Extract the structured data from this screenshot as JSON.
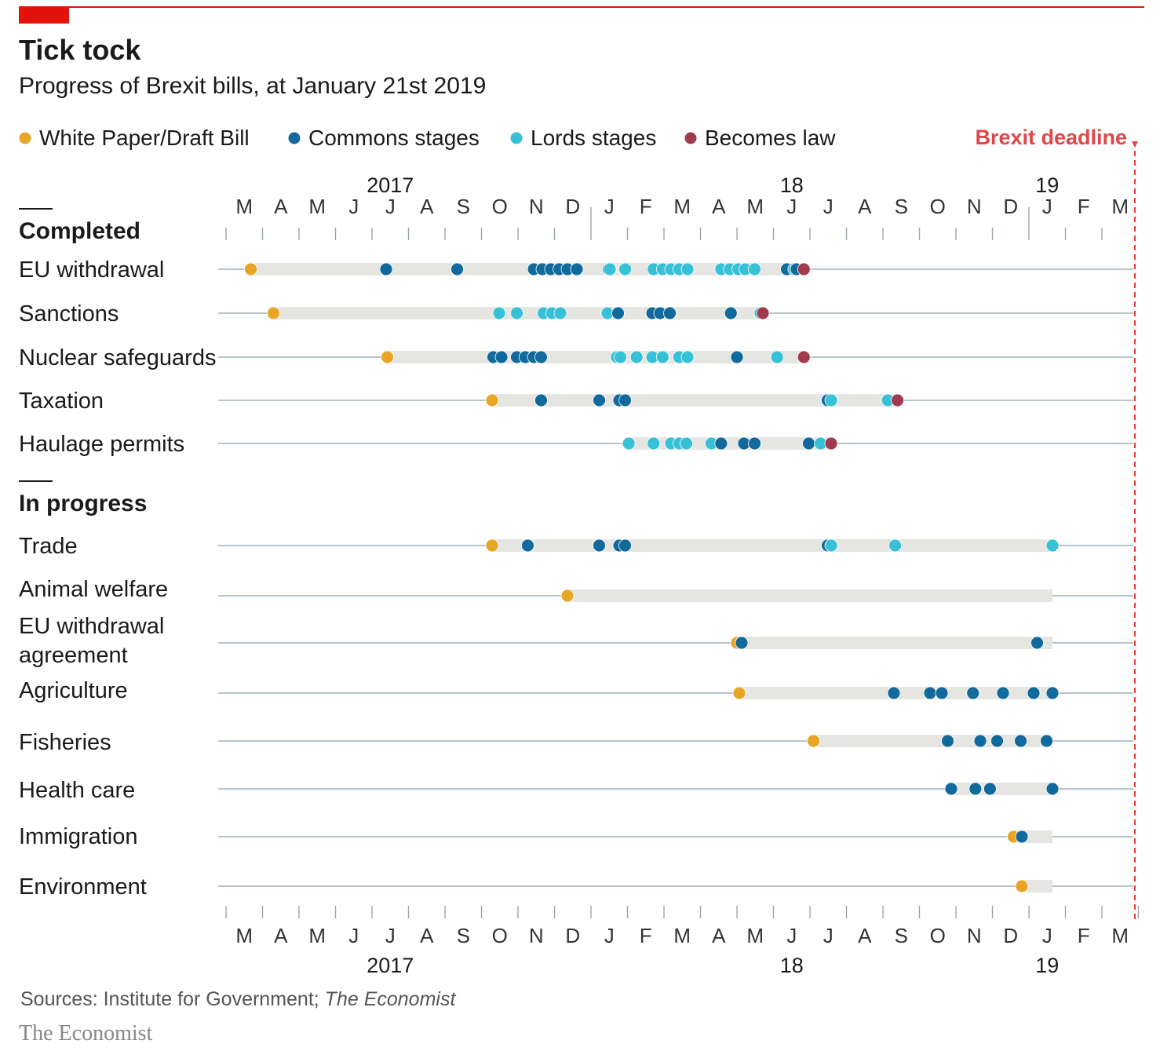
{
  "title": "Tick tock",
  "subtitle": "Progress of Brexit bills, at January 21st 2019",
  "source": {
    "prefix": "Sources: Institute for Government; ",
    "publication": "The Economist"
  },
  "brand": "The Economist",
  "colors": {
    "draft": "#e8a628",
    "commons": "#12699c",
    "lords": "#37c0d6",
    "law": "#a03a4c",
    "deadline": "#e3120b",
    "band": "#e5e5e1",
    "track": "#b7c4cc"
  },
  "chart_data": {
    "type": "scatter",
    "x_unit": "month",
    "x_range": [
      "2017-03",
      "2019-03"
    ],
    "month_letters": [
      "M",
      "A",
      "M",
      "J",
      "J",
      "A",
      "S",
      "O",
      "N",
      "D",
      "J",
      "F",
      "M",
      "A",
      "M",
      "J",
      "J",
      "A",
      "S",
      "O",
      "N",
      "D",
      "J",
      "F",
      "M"
    ],
    "year_labels": [
      {
        "label": "2017",
        "month": "2017-07"
      },
      {
        "label": "18",
        "month": "2018-06"
      },
      {
        "label": "19",
        "month": "2019-01"
      }
    ],
    "legend": [
      {
        "key": "draft",
        "label": "White Paper/Draft Bill"
      },
      {
        "key": "commons",
        "label": "Commons stages"
      },
      {
        "key": "lords",
        "label": "Lords stages"
      },
      {
        "key": "law",
        "label": "Becomes law"
      }
    ],
    "deadline": {
      "label": "Brexit deadline",
      "date": "2019-03-29"
    },
    "groups": [
      {
        "heading": "Completed",
        "bills": [
          {
            "name": "EU withdrawal",
            "band": [
              "2017-03-22",
              "2018-06-26"
            ],
            "points": [
              [
                "draft",
                "2017-03-22"
              ],
              [
                "commons",
                "2017-07-13"
              ],
              [
                "commons",
                "2017-09-11"
              ],
              [
                "commons",
                "2017-11-14"
              ],
              [
                "commons",
                "2017-11-21"
              ],
              [
                "commons",
                "2017-11-28"
              ],
              [
                "commons",
                "2017-12-05"
              ],
              [
                "commons",
                "2017-12-12"
              ],
              [
                "commons",
                "2017-12-20"
              ],
              [
                "commons",
                "2018-01-16"
              ],
              [
                "lords",
                "2018-01-17"
              ],
              [
                "lords",
                "2018-01-30"
              ],
              [
                "lords",
                "2018-02-21"
              ],
              [
                "lords",
                "2018-02-28"
              ],
              [
                "lords",
                "2018-03-07"
              ],
              [
                "lords",
                "2018-03-14"
              ],
              [
                "lords",
                "2018-03-21"
              ],
              [
                "lords",
                "2018-04-18"
              ],
              [
                "lords",
                "2018-04-25"
              ],
              [
                "lords",
                "2018-05-02"
              ],
              [
                "lords",
                "2018-05-08"
              ],
              [
                "lords",
                "2018-05-16"
              ],
              [
                "commons",
                "2018-06-12"
              ],
              [
                "lords",
                "2018-06-18"
              ],
              [
                "commons",
                "2018-06-20"
              ],
              [
                "law",
                "2018-06-26"
              ]
            ]
          },
          {
            "name": "Sanctions",
            "band": [
              "2017-04-10",
              "2018-05-23"
            ],
            "points": [
              [
                "draft",
                "2017-04-10"
              ],
              [
                "lords",
                "2017-10-16"
              ],
              [
                "lords",
                "2017-10-31"
              ],
              [
                "lords",
                "2017-11-22"
              ],
              [
                "lords",
                "2017-11-29"
              ],
              [
                "lords",
                "2017-12-06"
              ],
              [
                "lords",
                "2018-01-15"
              ],
              [
                "commons",
                "2018-01-24"
              ],
              [
                "commons",
                "2018-02-20"
              ],
              [
                "commons",
                "2018-02-26"
              ],
              [
                "commons",
                "2018-03-06"
              ],
              [
                "commons",
                "2018-04-26"
              ],
              [
                "lords",
                "2018-05-21"
              ],
              [
                "law",
                "2018-05-23"
              ]
            ]
          },
          {
            "name": "Nuclear safeguards",
            "band": [
              "2017-07-14",
              "2018-06-26"
            ],
            "points": [
              [
                "draft",
                "2017-07-14"
              ],
              [
                "commons",
                "2017-10-11"
              ],
              [
                "commons",
                "2017-10-18"
              ],
              [
                "commons",
                "2017-10-31"
              ],
              [
                "commons",
                "2017-11-07"
              ],
              [
                "commons",
                "2017-11-14"
              ],
              [
                "commons",
                "2017-11-20"
              ],
              [
                "lords",
                "2018-01-23"
              ],
              [
                "lords",
                "2018-01-26"
              ],
              [
                "lords",
                "2018-02-08"
              ],
              [
                "lords",
                "2018-02-20"
              ],
              [
                "lords",
                "2018-02-28"
              ],
              [
                "lords",
                "2018-03-14"
              ],
              [
                "lords",
                "2018-03-21"
              ],
              [
                "commons",
                "2018-05-01"
              ],
              [
                "lords",
                "2018-06-04"
              ],
              [
                "law",
                "2018-06-26"
              ]
            ]
          },
          {
            "name": "Taxation",
            "band": [
              "2017-10-10",
              "2018-09-13"
            ],
            "points": [
              [
                "draft",
                "2017-10-10"
              ],
              [
                "commons",
                "2017-11-20"
              ],
              [
                "commons",
                "2018-01-08"
              ],
              [
                "commons",
                "2018-01-25"
              ],
              [
                "commons",
                "2018-01-30"
              ],
              [
                "commons",
                "2018-07-16"
              ],
              [
                "lords",
                "2018-07-19"
              ],
              [
                "lords",
                "2018-09-05"
              ],
              [
                "law",
                "2018-09-13"
              ]
            ]
          },
          {
            "name": "Haulage permits",
            "band": [
              "2018-02-02",
              "2018-07-19"
            ],
            "points": [
              [
                "lords",
                "2018-02-02"
              ],
              [
                "lords",
                "2018-02-21"
              ],
              [
                "lords",
                "2018-03-07"
              ],
              [
                "lords",
                "2018-03-14"
              ],
              [
                "lords",
                "2018-03-20"
              ],
              [
                "lords",
                "2018-04-10"
              ],
              [
                "commons",
                "2018-04-18"
              ],
              [
                "commons",
                "2018-05-07"
              ],
              [
                "commons",
                "2018-05-16"
              ],
              [
                "commons",
                "2018-06-30"
              ],
              [
                "lords",
                "2018-07-10"
              ],
              [
                "law",
                "2018-07-19"
              ]
            ]
          }
        ]
      },
      {
        "heading": "In progress",
        "bills": [
          {
            "name": "Trade",
            "band": [
              "2017-10-10",
              "2019-01-21"
            ],
            "points": [
              [
                "draft",
                "2017-10-10"
              ],
              [
                "commons",
                "2017-11-09"
              ],
              [
                "commons",
                "2018-01-08"
              ],
              [
                "commons",
                "2018-01-25"
              ],
              [
                "commons",
                "2018-01-30"
              ],
              [
                "commons",
                "2018-07-16"
              ],
              [
                "lords",
                "2018-07-19"
              ],
              [
                "lords",
                "2018-09-11"
              ],
              [
                "lords",
                "2019-01-21"
              ]
            ]
          },
          {
            "name": "Animal welfare",
            "band": [
              "2017-12-12",
              "2019-01-21"
            ],
            "points": [
              [
                "draft",
                "2017-12-12"
              ]
            ]
          },
          {
            "name": "EU withdrawal agreement",
            "band": [
              "2018-05-02",
              "2019-01-21"
            ],
            "points": [
              [
                "draft",
                "2018-05-01"
              ],
              [
                "commons",
                "2018-05-05"
              ],
              [
                "commons",
                "2019-01-08"
              ]
            ]
          },
          {
            "name": "Agriculture",
            "band": [
              "2018-05-03",
              "2019-01-21"
            ],
            "points": [
              [
                "draft",
                "2018-05-03"
              ],
              [
                "commons",
                "2018-09-10"
              ],
              [
                "commons",
                "2018-10-10"
              ],
              [
                "commons",
                "2018-10-20"
              ],
              [
                "commons",
                "2018-11-15"
              ],
              [
                "commons",
                "2018-12-10"
              ],
              [
                "commons",
                "2019-01-05"
              ],
              [
                "commons",
                "2019-01-21"
              ]
            ]
          },
          {
            "name": "Fisheries",
            "band": [
              "2018-07-04",
              "2019-01-21"
            ],
            "points": [
              [
                "draft",
                "2018-07-04"
              ],
              [
                "commons",
                "2018-10-25"
              ],
              [
                "commons",
                "2018-11-21"
              ],
              [
                "commons",
                "2018-12-05"
              ],
              [
                "commons",
                "2018-12-25"
              ],
              [
                "commons",
                "2019-01-16"
              ]
            ]
          },
          {
            "name": "Health care",
            "band": [
              "2018-10-28",
              "2019-01-21"
            ],
            "points": [
              [
                "commons",
                "2018-10-28"
              ],
              [
                "commons",
                "2018-11-17"
              ],
              [
                "commons",
                "2018-11-29"
              ],
              [
                "commons",
                "2019-01-21"
              ]
            ]
          },
          {
            "name": "Immigration",
            "band": [
              "2018-12-19",
              "2019-01-21"
            ],
            "points": [
              [
                "draft",
                "2018-12-19"
              ],
              [
                "commons",
                "2018-12-26"
              ]
            ]
          },
          {
            "name": "Environment",
            "band": [
              "2018-12-26",
              "2019-01-21"
            ],
            "points": [
              [
                "draft",
                "2018-12-26"
              ]
            ]
          }
        ]
      }
    ]
  }
}
